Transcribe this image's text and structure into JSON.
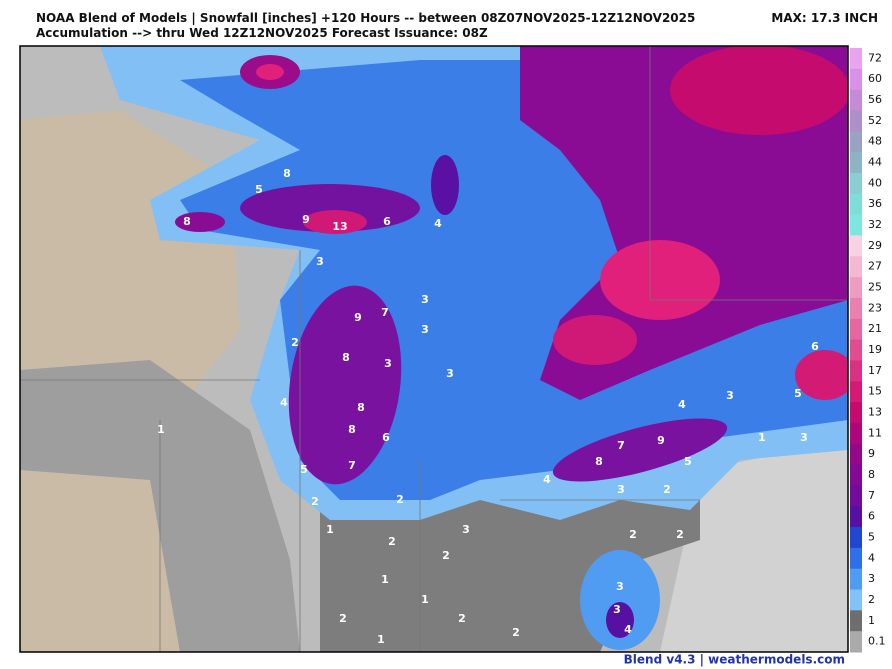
{
  "header": {
    "title_line1": "NOAA Blend of Models | Snowfall [inches] +120 Hours -- between 08Z07NOV2025-12Z12NOV2025",
    "title_line2": "Accumulation --> thru Wed 12Z12NOV2025   Forecast Issuance: 08Z",
    "max": "MAX: 17.3 INCH"
  },
  "legend": {
    "levels": [
      72,
      60,
      56,
      52,
      48,
      44,
      40,
      36,
      32,
      29,
      27,
      25,
      23,
      21,
      19,
      17,
      15,
      13,
      11,
      9,
      8,
      7,
      6,
      5,
      4,
      3,
      2,
      1,
      0.1
    ],
    "colors": [
      "#e9a3f0",
      "#d890e8",
      "#c58ad8",
      "#ad90c8",
      "#98a2c2",
      "#8eb4c4",
      "#8ccdd2",
      "#80dcd6",
      "#7ee6e0",
      "#f8d2e2",
      "#f4b8d0",
      "#ef9cc0",
      "#ea80b0",
      "#e566a0",
      "#e04c90",
      "#da3282",
      "#d31a74",
      "#c50c6e",
      "#ac087c",
      "#94088a",
      "#820a94",
      "#720c9a",
      "#5610a2",
      "#2146d2",
      "#2f70e8",
      "#4f9cf2",
      "#82c2f6",
      "#6e6e6e",
      "#aaaaaa"
    ]
  },
  "map_labels": [
    "8",
    "5",
    "8",
    "9",
    "13",
    "6",
    "4",
    "3",
    "7",
    "9",
    "8",
    "3",
    "3",
    "3",
    "3",
    "8",
    "8",
    "6",
    "7",
    "5",
    "2",
    "4",
    "1",
    "2",
    "3",
    "2",
    "1",
    "2",
    "1",
    "1",
    "2",
    "2",
    "1",
    "3",
    "3",
    "4",
    "3",
    "2",
    "7",
    "9",
    "5",
    "4",
    "4",
    "3",
    "5",
    "6",
    "3",
    "1",
    "8",
    "2",
    "2",
    "2",
    "2"
  ],
  "footer": "Blend v4.3 | weathermodels.com"
}
